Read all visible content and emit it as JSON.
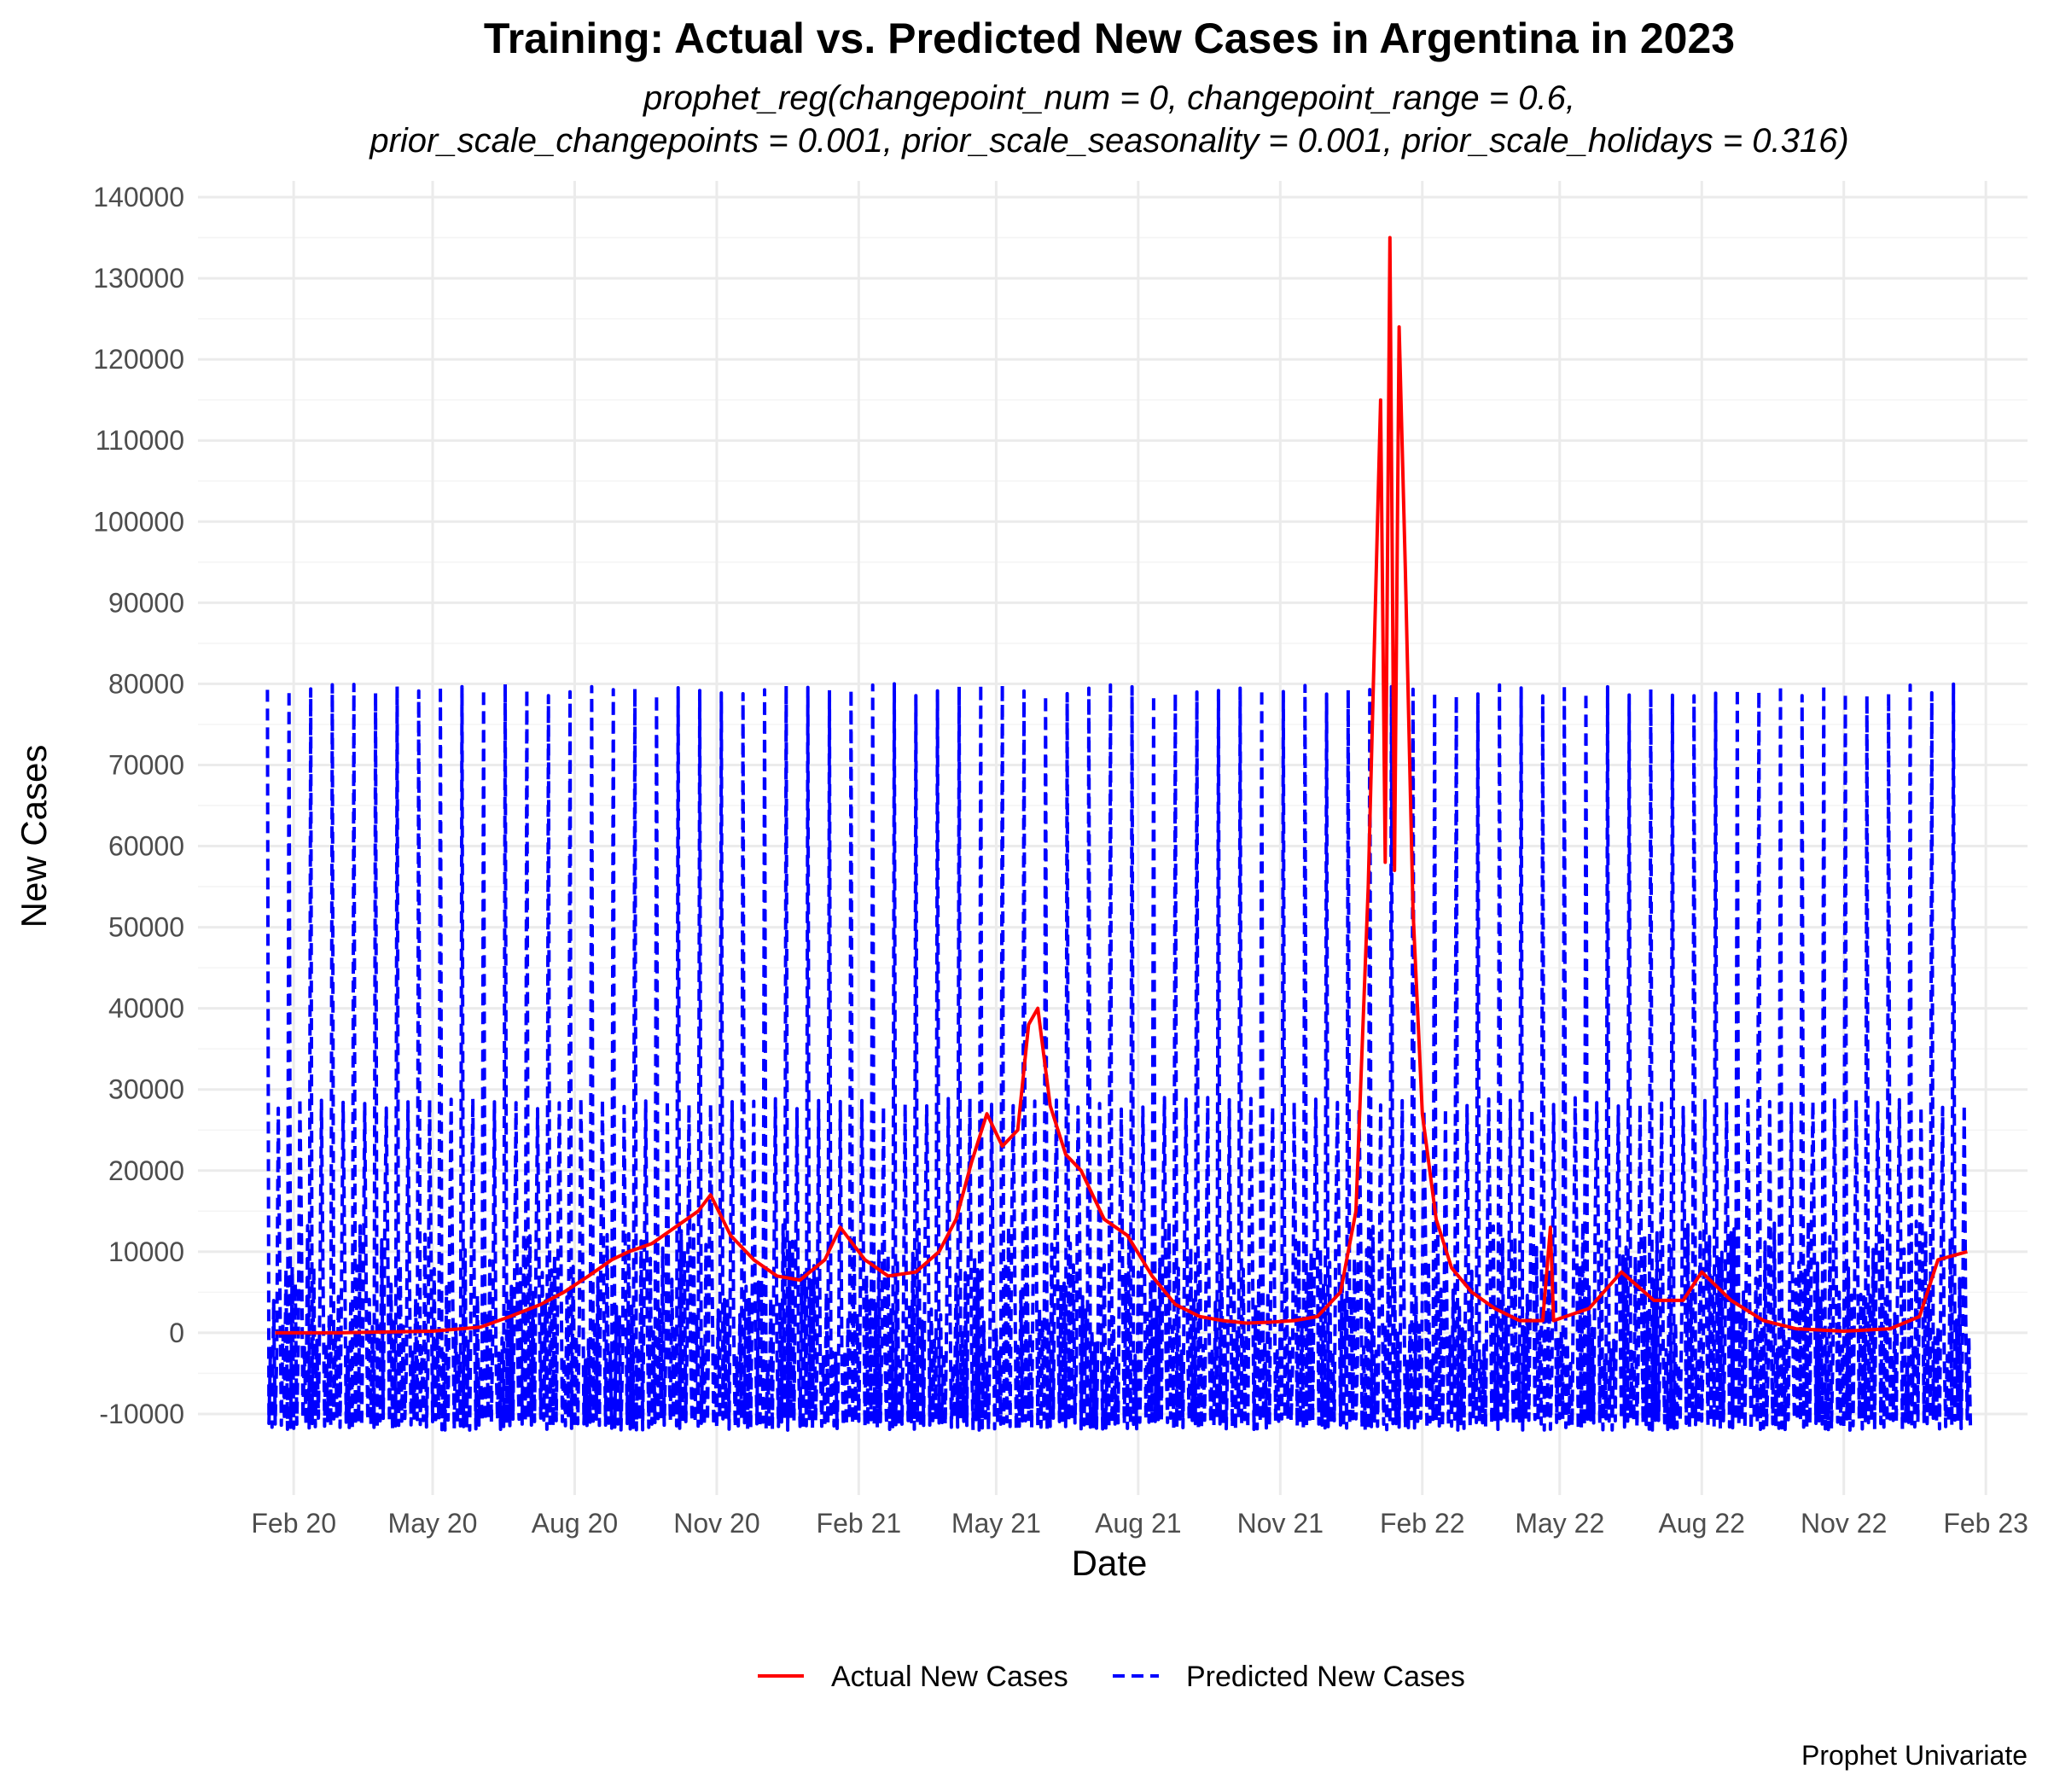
{
  "chart_data": {
    "type": "line",
    "title": "Training: Actual vs. Predicted New Cases in Argentina in 2023",
    "subtitle_line1": "prophet_reg(changepoint_num = 0, changepoint_range = 0.6,",
    "subtitle_line2": "prior_scale_changepoints = 0.001, prior_scale_seasonality = 0.001, prior_scale_holidays = 0.316)",
    "xlabel": "Date",
    "ylabel": "New Cases",
    "caption": "Prophet Univariate",
    "x_range": [
      "2019-12-01",
      "2023-02-28"
    ],
    "ylim": [
      -20000,
      142000
    ],
    "y_ticks": [
      {
        "value": -10000,
        "label": "-10000"
      },
      {
        "value": 0,
        "label": "0"
      },
      {
        "value": 10000,
        "label": "10000"
      },
      {
        "value": 20000,
        "label": "20000"
      },
      {
        "value": 30000,
        "label": "30000"
      },
      {
        "value": 40000,
        "label": "40000"
      },
      {
        "value": 50000,
        "label": "50000"
      },
      {
        "value": 60000,
        "label": "60000"
      },
      {
        "value": 70000,
        "label": "70000"
      },
      {
        "value": 80000,
        "label": "80000"
      },
      {
        "value": 90000,
        "label": "90000"
      },
      {
        "value": 100000,
        "label": "100000"
      },
      {
        "value": 110000,
        "label": "110000"
      },
      {
        "value": 120000,
        "label": "120000"
      },
      {
        "value": 130000,
        "label": "130000"
      },
      {
        "value": 140000,
        "label": "140000"
      }
    ],
    "x_ticks": [
      {
        "date": "2020-02-01",
        "label": "Feb 20"
      },
      {
        "date": "2020-05-01",
        "label": "May 20"
      },
      {
        "date": "2020-08-01",
        "label": "Aug 20"
      },
      {
        "date": "2020-11-01",
        "label": "Nov 20"
      },
      {
        "date": "2021-02-01",
        "label": "Feb 21"
      },
      {
        "date": "2021-05-01",
        "label": "May 21"
      },
      {
        "date": "2021-08-01",
        "label": "Aug 21"
      },
      {
        "date": "2021-11-01",
        "label": "Nov 21"
      },
      {
        "date": "2022-02-01",
        "label": "Feb 22"
      },
      {
        "date": "2022-05-01",
        "label": "May 22"
      },
      {
        "date": "2022-08-01",
        "label": "Aug 22"
      },
      {
        "date": "2022-11-01",
        "label": "Nov 22"
      },
      {
        "date": "2023-02-01",
        "label": "Feb 23"
      }
    ],
    "legend": {
      "position": "bottom",
      "entries": [
        {
          "name": "Actual New Cases",
          "color": "#ff0000",
          "style": "solid"
        },
        {
          "name": "Predicted New Cases",
          "color": "#0000ff",
          "style": "dashed"
        }
      ]
    },
    "series": [
      {
        "name": "Actual New Cases",
        "color": "#ff0000",
        "style": "solid",
        "points": [
          [
            "2020-01-20",
            0
          ],
          [
            "2020-03-01",
            0
          ],
          [
            "2020-04-01",
            100
          ],
          [
            "2020-05-01",
            200
          ],
          [
            "2020-06-01",
            700
          ],
          [
            "2020-06-20",
            2000
          ],
          [
            "2020-07-10",
            3500
          ],
          [
            "2020-07-25",
            5000
          ],
          [
            "2020-08-10",
            7000
          ],
          [
            "2020-08-25",
            9000
          ],
          [
            "2020-09-05",
            10000
          ],
          [
            "2020-09-20",
            11000
          ],
          [
            "2020-10-05",
            13000
          ],
          [
            "2020-10-20",
            15000
          ],
          [
            "2020-10-28",
            17000
          ],
          [
            "2020-11-10",
            12000
          ],
          [
            "2020-11-25",
            9000
          ],
          [
            "2020-12-10",
            7000
          ],
          [
            "2020-12-25",
            6500
          ],
          [
            "2021-01-10",
            9000
          ],
          [
            "2021-01-20",
            13000
          ],
          [
            "2021-02-05",
            9000
          ],
          [
            "2021-02-20",
            7000
          ],
          [
            "2021-03-10",
            7500
          ],
          [
            "2021-03-25",
            10000
          ],
          [
            "2021-04-05",
            14000
          ],
          [
            "2021-04-15",
            21000
          ],
          [
            "2021-04-25",
            27000
          ],
          [
            "2021-05-05",
            23000
          ],
          [
            "2021-05-15",
            25000
          ],
          [
            "2021-05-22",
            38000
          ],
          [
            "2021-05-28",
            40000
          ],
          [
            "2021-06-05",
            28000
          ],
          [
            "2021-06-15",
            22000
          ],
          [
            "2021-06-25",
            20000
          ],
          [
            "2021-07-10",
            14000
          ],
          [
            "2021-07-25",
            12000
          ],
          [
            "2021-08-10",
            7000
          ],
          [
            "2021-08-25",
            3500
          ],
          [
            "2021-09-10",
            2000
          ],
          [
            "2021-09-25",
            1500
          ],
          [
            "2021-10-10",
            1200
          ],
          [
            "2021-10-25",
            1300
          ],
          [
            "2021-11-10",
            1500
          ],
          [
            "2021-11-25",
            2000
          ],
          [
            "2021-12-10",
            5000
          ],
          [
            "2021-12-20",
            15000
          ],
          [
            "2021-12-28",
            55000
          ],
          [
            "2022-01-05",
            115000
          ],
          [
            "2022-01-08",
            58000
          ],
          [
            "2022-01-11",
            135000
          ],
          [
            "2022-01-14",
            57000
          ],
          [
            "2022-01-17",
            124000
          ],
          [
            "2022-01-21",
            94000
          ],
          [
            "2022-01-26",
            52000
          ],
          [
            "2022-02-01",
            27000
          ],
          [
            "2022-02-10",
            14000
          ],
          [
            "2022-02-20",
            8000
          ],
          [
            "2022-03-05",
            5000
          ],
          [
            "2022-03-20",
            3000
          ],
          [
            "2022-04-05",
            1500
          ],
          [
            "2022-04-20",
            1500
          ],
          [
            "2022-04-25",
            13000
          ],
          [
            "2022-04-27",
            1500
          ],
          [
            "2022-05-20",
            3000
          ],
          [
            "2022-06-10",
            7500
          ],
          [
            "2022-07-01",
            4000
          ],
          [
            "2022-07-20",
            4000
          ],
          [
            "2022-08-01",
            7500
          ],
          [
            "2022-08-20",
            4000
          ],
          [
            "2022-09-10",
            1500
          ],
          [
            "2022-10-01",
            500
          ],
          [
            "2022-11-01",
            200
          ],
          [
            "2022-12-01",
            500
          ],
          [
            "2022-12-20",
            2000
          ],
          [
            "2023-01-01",
            9000
          ],
          [
            "2023-01-20",
            10000
          ]
        ]
      },
      {
        "name": "Predicted New Cases",
        "color": "#0000ff",
        "style": "dashed",
        "start": "2020-01-15",
        "end": "2023-01-22",
        "period_days": 14,
        "low_range": [
          -12000,
          -10500
        ],
        "mid_range": [
          -4000,
          14000
        ],
        "secondary_peak": 29000,
        "main_peak": 80000
      }
    ]
  }
}
